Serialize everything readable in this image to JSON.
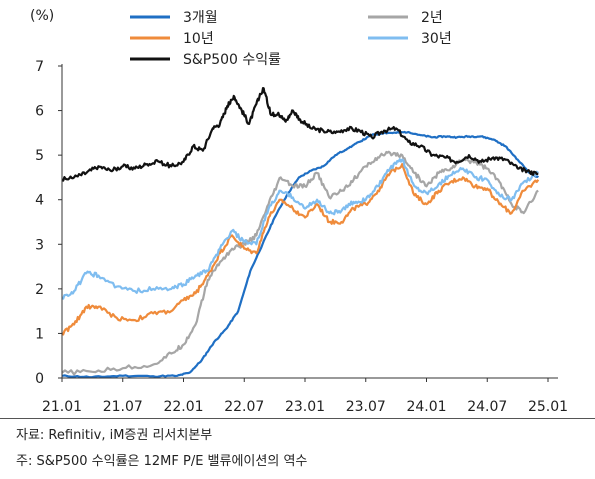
{
  "unit_label": "(%)",
  "notes": [
    "자료: Refinitiv, iM증권 리서치본부",
    "주: S&P500 수익률은 12MF P/E 밸류에이션의 역수"
  ],
  "chart_data": {
    "type": "line",
    "title": "",
    "xlabel": "",
    "ylabel": "(%)",
    "ylim": [
      0,
      7
    ],
    "yticks": [
      0,
      1,
      2,
      3,
      4,
      5,
      6,
      7
    ],
    "xlim": [
      2021.0,
      2025.0
    ],
    "xticks": [
      {
        "x": 2021.0,
        "label": "21.01"
      },
      {
        "x": 2021.5,
        "label": "21.07"
      },
      {
        "x": 2022.0,
        "label": "22.01"
      },
      {
        "x": 2022.5,
        "label": "22.07"
      },
      {
        "x": 2023.0,
        "label": "23.01"
      },
      {
        "x": 2023.5,
        "label": "23.07"
      },
      {
        "x": 2024.0,
        "label": "24.01"
      },
      {
        "x": 2024.5,
        "label": "24.07"
      },
      {
        "x": 2025.0,
        "label": "25.01"
      }
    ],
    "grid": false,
    "legend_position": "top",
    "series": [
      {
        "name": "3개월",
        "color": "#1f6fc4",
        "width": 2.2,
        "x": [
          2021.0,
          2021.25,
          2021.5,
          2021.75,
          2021.95,
          2022.05,
          2022.15,
          2022.25,
          2022.35,
          2022.45,
          2022.55,
          2022.65,
          2022.75,
          2022.85,
          2022.95,
          2023.05,
          2023.15,
          2023.25,
          2023.35,
          2023.45,
          2023.55,
          2023.65,
          2023.75,
          2023.85,
          2023.95,
          2024.05,
          2024.15,
          2024.25,
          2024.35,
          2024.45,
          2024.55,
          2024.65,
          2024.75,
          2024.85,
          2024.92
        ],
        "y": [
          0.05,
          0.02,
          0.05,
          0.04,
          0.05,
          0.12,
          0.4,
          0.8,
          1.1,
          1.5,
          2.4,
          3.0,
          3.6,
          4.1,
          4.5,
          4.65,
          4.75,
          5.0,
          5.15,
          5.3,
          5.45,
          5.5,
          5.5,
          5.52,
          5.45,
          5.4,
          5.42,
          5.4,
          5.42,
          5.42,
          5.35,
          5.2,
          4.9,
          4.6,
          4.5
        ]
      },
      {
        "name": "2년",
        "color": "#a6a6a6",
        "width": 2.2,
        "x": [
          2021.0,
          2021.25,
          2021.5,
          2021.75,
          2021.9,
          2022.0,
          2022.1,
          2022.2,
          2022.3,
          2022.4,
          2022.5,
          2022.6,
          2022.7,
          2022.8,
          2022.9,
          2023.0,
          2023.1,
          2023.2,
          2023.3,
          2023.4,
          2023.5,
          2023.6,
          2023.7,
          2023.8,
          2023.9,
          2024.0,
          2024.1,
          2024.2,
          2024.3,
          2024.4,
          2024.5,
          2024.6,
          2024.7,
          2024.8,
          2024.92
        ],
        "y": [
          0.12,
          0.14,
          0.22,
          0.3,
          0.55,
          0.75,
          1.2,
          2.2,
          2.6,
          2.9,
          3.0,
          3.2,
          3.9,
          4.5,
          4.3,
          4.3,
          4.6,
          4.05,
          4.2,
          4.45,
          4.75,
          4.95,
          5.05,
          5.0,
          4.6,
          4.3,
          4.6,
          4.7,
          4.9,
          4.85,
          4.7,
          4.4,
          3.9,
          3.7,
          4.2
        ]
      },
      {
        "name": "10년",
        "color": "#ef8b3b",
        "width": 2.2,
        "x": [
          2021.0,
          2021.1,
          2021.2,
          2021.3,
          2021.45,
          2021.6,
          2021.75,
          2021.9,
          2022.0,
          2022.1,
          2022.2,
          2022.3,
          2022.4,
          2022.5,
          2022.6,
          2022.7,
          2022.8,
          2022.9,
          2023.0,
          2023.1,
          2023.2,
          2023.3,
          2023.4,
          2023.5,
          2023.6,
          2023.7,
          2023.8,
          2023.9,
          2024.0,
          2024.1,
          2024.2,
          2024.3,
          2024.4,
          2024.5,
          2024.6,
          2024.7,
          2024.8,
          2024.92
        ],
        "y": [
          1.0,
          1.2,
          1.6,
          1.6,
          1.35,
          1.3,
          1.45,
          1.5,
          1.75,
          1.9,
          2.3,
          2.8,
          3.2,
          2.9,
          2.8,
          3.6,
          4.0,
          3.8,
          3.6,
          3.9,
          3.5,
          3.5,
          3.8,
          3.9,
          4.2,
          4.6,
          4.8,
          4.1,
          3.9,
          4.2,
          4.4,
          4.5,
          4.3,
          4.25,
          3.9,
          3.7,
          4.2,
          4.45
        ]
      },
      {
        "name": "30년",
        "color": "#7fbdf0",
        "width": 2.2,
        "x": [
          2021.0,
          2021.1,
          2021.2,
          2021.3,
          2021.45,
          2021.6,
          2021.75,
          2021.9,
          2022.0,
          2022.1,
          2022.2,
          2022.3,
          2022.4,
          2022.5,
          2022.6,
          2022.7,
          2022.8,
          2022.9,
          2023.0,
          2023.1,
          2023.2,
          2023.3,
          2023.4,
          2023.5,
          2023.6,
          2023.7,
          2023.8,
          2023.9,
          2024.0,
          2024.1,
          2024.2,
          2024.3,
          2024.4,
          2024.5,
          2024.6,
          2024.7,
          2024.8,
          2024.92
        ],
        "y": [
          1.8,
          1.95,
          2.35,
          2.3,
          2.05,
          1.95,
          2.0,
          2.0,
          2.1,
          2.3,
          2.4,
          2.9,
          3.3,
          3.05,
          3.0,
          3.8,
          4.2,
          4.05,
          3.8,
          4.0,
          3.7,
          3.75,
          3.95,
          4.0,
          4.3,
          4.7,
          4.9,
          4.3,
          4.15,
          4.35,
          4.55,
          4.7,
          4.5,
          4.45,
          4.1,
          4.0,
          4.4,
          4.6
        ]
      },
      {
        "name": "S&P500 수익률",
        "color": "#111111",
        "width": 2.2,
        "x": [
          2021.0,
          2021.1,
          2021.2,
          2021.3,
          2021.4,
          2021.5,
          2021.6,
          2021.7,
          2021.8,
          2021.9,
          2022.0,
          2022.08,
          2022.16,
          2022.24,
          2022.3,
          2022.36,
          2022.42,
          2022.48,
          2022.54,
          2022.6,
          2022.66,
          2022.72,
          2022.78,
          2022.84,
          2022.9,
          2022.96,
          2023.05,
          2023.15,
          2023.25,
          2023.35,
          2023.45,
          2023.55,
          2023.65,
          2023.75,
          2023.85,
          2023.95,
          2024.05,
          2024.15,
          2024.25,
          2024.35,
          2024.45,
          2024.55,
          2024.65,
          2024.75,
          2024.85,
          2024.92
        ],
        "y": [
          4.45,
          4.5,
          4.6,
          4.75,
          4.65,
          4.75,
          4.7,
          4.8,
          4.85,
          4.75,
          4.85,
          5.2,
          5.1,
          5.6,
          5.7,
          6.1,
          6.3,
          6.0,
          5.7,
          6.15,
          6.5,
          5.9,
          5.95,
          5.75,
          6.0,
          5.8,
          5.6,
          5.55,
          5.5,
          5.6,
          5.55,
          5.4,
          5.55,
          5.6,
          5.3,
          5.2,
          5.0,
          4.95,
          4.85,
          5.0,
          4.85,
          4.95,
          4.9,
          4.7,
          4.62,
          4.58
        ]
      }
    ]
  }
}
